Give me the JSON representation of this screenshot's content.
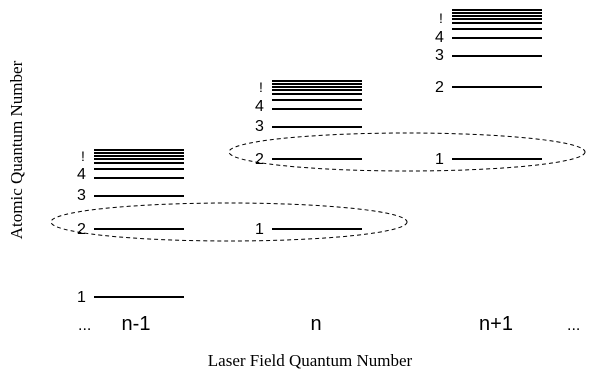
{
  "axes": {
    "ylabel": "Atomic Quantum Number",
    "xlabel": "Laser Field Quantum Number"
  },
  "columns": [
    {
      "label": "n-1",
      "level_labels": {
        "one": "1",
        "two": "2",
        "three": "3",
        "four": "4",
        "limit": "!"
      }
    },
    {
      "label": "n",
      "level_labels": {
        "one": "1",
        "two": "2",
        "three": "3",
        "four": "4",
        "limit": "!"
      }
    },
    {
      "label": "n+1",
      "level_labels": {
        "one": "1",
        "two": "2",
        "three": "3",
        "four": "4",
        "limit": "!"
      }
    }
  ],
  "ellipsis_left": "...",
  "ellipsis_right": "...",
  "colors": {
    "line": "#000000",
    "background": "#ffffff"
  }
}
